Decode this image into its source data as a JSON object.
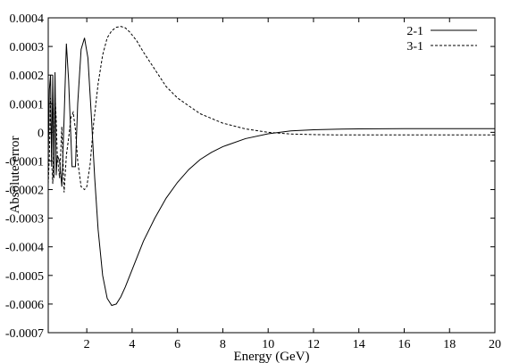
{
  "chart_data": {
    "type": "line",
    "title": "",
    "xlabel": "Energy (GeV)",
    "ylabel": "Absolute error",
    "xlim": [
      0.3,
      20
    ],
    "ylim": [
      -0.0007,
      0.0004
    ],
    "grid": false,
    "legend_position": "top-right",
    "x_ticks": [
      2,
      4,
      6,
      8,
      10,
      12,
      14,
      16,
      18,
      20
    ],
    "x_tick_labels": [
      "2",
      "4",
      "6",
      "8",
      "10",
      "12",
      "14",
      "16",
      "18",
      "20"
    ],
    "y_ticks": [
      0.0004,
      0.0003,
      0.0002,
      0.0001,
      0,
      -0.0001,
      -0.0002,
      -0.0003,
      -0.0004,
      -0.0005,
      -0.0006,
      -0.0007
    ],
    "y_tick_labels": [
      "0.0004",
      "0.0003",
      "0.0002",
      "0.0001",
      "0",
      "-0.0001",
      "-0.0002",
      "-0.0003",
      "-0.0004",
      "-0.0005",
      "-0.0006",
      "-0.0007"
    ],
    "series": [
      {
        "name": "2-1",
        "style": "solid",
        "color": "#000000",
        "x": [
          0.3,
          0.35,
          0.4,
          0.45,
          0.5,
          0.55,
          0.6,
          0.65,
          0.7,
          0.8,
          0.9,
          1.0,
          1.1,
          1.2,
          1.35,
          1.5,
          1.6,
          1.75,
          1.9,
          2.05,
          2.2,
          2.35,
          2.5,
          2.7,
          2.9,
          3.1,
          3.3,
          3.5,
          3.7,
          3.9,
          4.2,
          4.5,
          5.0,
          5.5,
          6.0,
          6.5,
          7.0,
          7.5,
          8.0,
          9.0,
          10.0,
          11.0,
          12.0,
          13.0,
          14.0,
          16.0,
          18.0,
          20.0
        ],
        "y": [
          -0.0001,
          0.00015,
          0.0002,
          -0.00012,
          0.0002,
          -0.00016,
          0.00021,
          -0.00015,
          -8e-05,
          -0.0001,
          -0.00019,
          5e-05,
          0.00031,
          0.00018,
          -0.00012,
          -0.00012,
          0.0001,
          0.00029,
          0.00033,
          0.00026,
          6e-05,
          -0.00016,
          -0.00034,
          -0.0005,
          -0.00058,
          -0.000605,
          -0.0006,
          -0.000575,
          -0.00054,
          -0.0005,
          -0.00044,
          -0.00038,
          -0.0003,
          -0.00023,
          -0.000175,
          -0.00013,
          -9.5e-05,
          -7e-05,
          -5e-05,
          -2.2e-05,
          -5e-06,
          5e-06,
          9e-06,
          1.1e-05,
          1.2e-05,
          1.3e-05,
          1.3e-05,
          1.3e-05
        ]
      },
      {
        "name": "3-1",
        "style": "dashed",
        "color": "#000000",
        "x": [
          0.3,
          0.35,
          0.4,
          0.45,
          0.5,
          0.55,
          0.6,
          0.65,
          0.7,
          0.8,
          0.9,
          1.0,
          1.1,
          1.2,
          1.3,
          1.4,
          1.5,
          1.6,
          1.75,
          1.9,
          2.0,
          2.15,
          2.3,
          2.5,
          2.7,
          2.9,
          3.1,
          3.3,
          3.5,
          3.7,
          3.9,
          4.2,
          4.5,
          5.0,
          5.5,
          6.0,
          7.0,
          8.0,
          9.0,
          10.0,
          11.0,
          12.0,
          13.0,
          14.0,
          16.0,
          18.0,
          20.0
        ],
        "y": [
          -0.00018,
          -8e-05,
          0.00012,
          -0.0001,
          -0.00018,
          -2e-05,
          0.00013,
          5e-05,
          -8e-05,
          -0.00016,
          2e-05,
          -0.00021,
          -8e-05,
          -2e-05,
          5e-05,
          7e-05,
          1e-05,
          -0.0001,
          -0.00019,
          -0.0002,
          -0.00019,
          -0.00011,
          3e-05,
          0.00017,
          0.00027,
          0.00033,
          0.000355,
          0.000367,
          0.00037,
          0.000365,
          0.00035,
          0.00032,
          0.00028,
          0.00022,
          0.00016,
          0.00012,
          6.5e-05,
          3.2e-05,
          1.2e-05,
          0.0,
          -6e-06,
          -8e-06,
          -9e-06,
          -9e-06,
          -9e-06,
          -9e-06,
          -9e-06
        ]
      }
    ]
  }
}
